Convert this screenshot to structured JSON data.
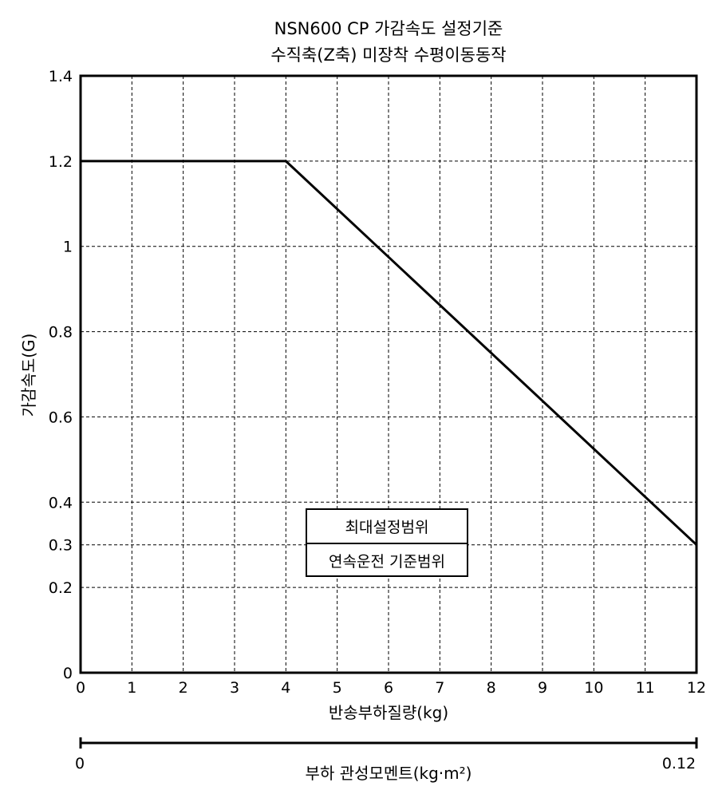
{
  "chart_data": {
    "type": "line",
    "title": "NSN600 CP 가감속도 설정기준",
    "subtitle": "수직축(Z축) 미장착 수평이동동작",
    "xlabel": "반송부하질량(kg)",
    "ylabel": "가감속도(G)",
    "xlim": [
      0,
      12
    ],
    "ylim": [
      0,
      1.4
    ],
    "x_ticks": [
      "0",
      "1",
      "2",
      "3",
      "4",
      "5",
      "6",
      "7",
      "8",
      "9",
      "10",
      "11",
      "12"
    ],
    "y_ticks": [
      {
        "value": 0,
        "label": "0"
      },
      {
        "value": 0.2,
        "label": "0.2"
      },
      {
        "value": 0.3,
        "label": "0.3"
      },
      {
        "value": 0.4,
        "label": "0.4"
      },
      {
        "value": 0.6,
        "label": "0.6"
      },
      {
        "value": 0.8,
        "label": "0.8"
      },
      {
        "value": 1.0,
        "label": "1"
      },
      {
        "value": 1.2,
        "label": "1.2"
      },
      {
        "value": 1.4,
        "label": "1.4"
      }
    ],
    "grid": true,
    "series": [
      {
        "x": [
          0,
          4,
          12
        ],
        "y": [
          1.2,
          1.2,
          0.3
        ],
        "color": "#000000"
      }
    ],
    "legend_box": {
      "top_label": "최대설정범위",
      "bottom_label": "연속운전 기준범위"
    },
    "secondary_axis": {
      "label": "부하 관성모멘트(kg·m²)",
      "min_label": "0",
      "max_label": "0.12",
      "range": [
        0,
        0.12
      ]
    }
  }
}
